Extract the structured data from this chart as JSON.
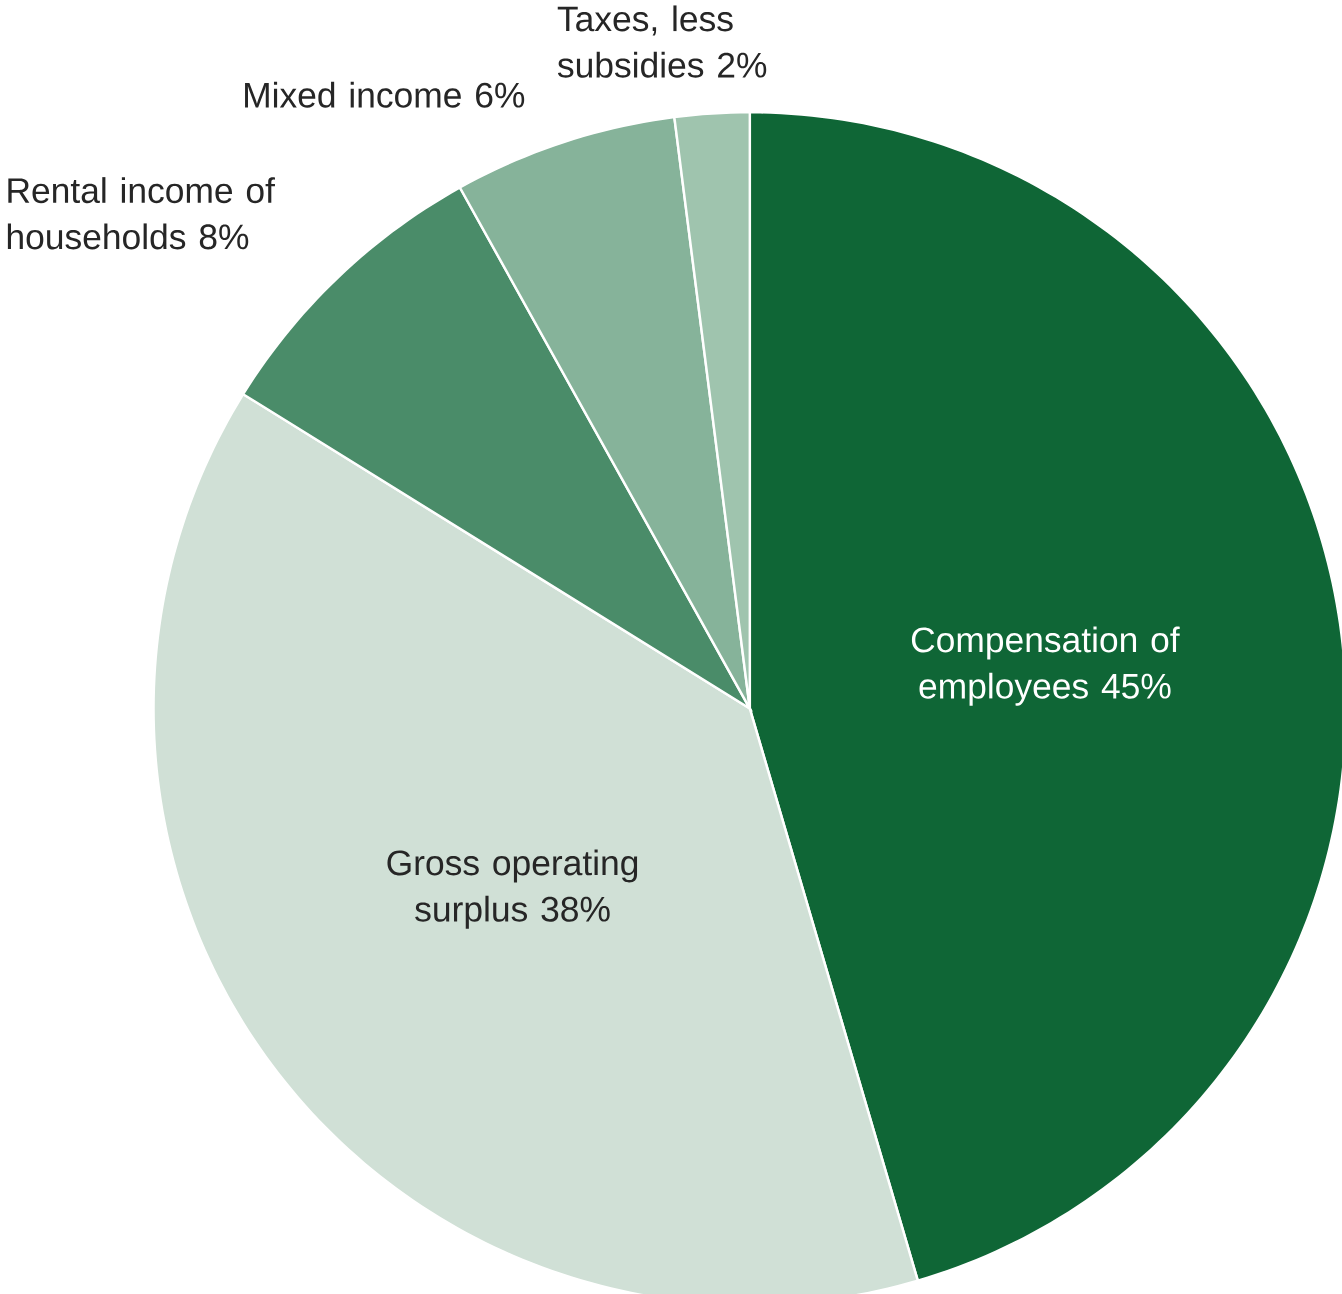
{
  "chart_data": {
    "type": "pie",
    "categories": [
      "Compensation of employees",
      "Gross operating surplus",
      "Rental income of households",
      "Mixed income",
      "Taxes, less subsidies"
    ],
    "values": [
      45,
      38,
      8,
      6,
      2
    ],
    "value_labels": [
      "45%",
      "38%",
      "8%",
      "6%",
      "2%"
    ],
    "colors": [
      "#0f6636",
      "#d0e0d6",
      "#4a8c69",
      "#86b39a",
      "#9fc4ae"
    ]
  }
}
